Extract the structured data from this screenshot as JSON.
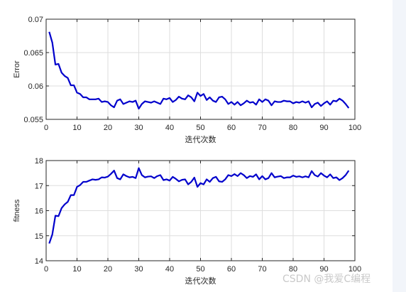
{
  "chart_data": [
    {
      "type": "line",
      "title": "",
      "xlabel": "迭代次数",
      "ylabel": "Error",
      "xlim": [
        0,
        100
      ],
      "ylim": [
        0.055,
        0.07
      ],
      "xticks": [
        "0",
        "10",
        "20",
        "30",
        "40",
        "50",
        "60",
        "70",
        "80",
        "90",
        "100"
      ],
      "yticks": [
        "0.055",
        "0.06",
        "0.065",
        "0.07"
      ],
      "ytick_values": [
        0.055,
        0.06,
        0.065,
        0.07
      ],
      "grid": true,
      "line_color": "#0000cc",
      "x": [
        1,
        2,
        3,
        4,
        5,
        6,
        7,
        8,
        9,
        10,
        11,
        12,
        13,
        14,
        15,
        16,
        17,
        18,
        19,
        20,
        21,
        22,
        23,
        24,
        25,
        26,
        27,
        28,
        29,
        30,
        31,
        32,
        33,
        34,
        35,
        36,
        37,
        38,
        39,
        40,
        41,
        42,
        43,
        44,
        45,
        46,
        47,
        48,
        49,
        50,
        51,
        52,
        53,
        54,
        55,
        56,
        57,
        58,
        59,
        60,
        61,
        62,
        63,
        64,
        65,
        66,
        67,
        68,
        69,
        70,
        71,
        72,
        73,
        74,
        75,
        76,
        77,
        78,
        79,
        80,
        81,
        82,
        83,
        84,
        85,
        86,
        87,
        88,
        89,
        90,
        91,
        92,
        93,
        94,
        95,
        96,
        97,
        98
      ],
      "values": [
        0.0681,
        0.0665,
        0.0632,
        0.0633,
        0.062,
        0.0615,
        0.0612,
        0.0601,
        0.0601,
        0.059,
        0.0588,
        0.0583,
        0.0583,
        0.058,
        0.058,
        0.058,
        0.0581,
        0.0576,
        0.0577,
        0.0576,
        0.0571,
        0.0568,
        0.0578,
        0.058,
        0.0573,
        0.0575,
        0.0577,
        0.0576,
        0.0578,
        0.0566,
        0.0573,
        0.0577,
        0.0576,
        0.0575,
        0.0577,
        0.0575,
        0.0573,
        0.0581,
        0.058,
        0.0582,
        0.0576,
        0.0579,
        0.0584,
        0.0581,
        0.058,
        0.0586,
        0.0583,
        0.0577,
        0.059,
        0.0585,
        0.0588,
        0.0579,
        0.0583,
        0.0578,
        0.0576,
        0.0583,
        0.0584,
        0.058,
        0.0573,
        0.0576,
        0.0572,
        0.0576,
        0.0571,
        0.0574,
        0.0578,
        0.0575,
        0.0576,
        0.0572,
        0.058,
        0.0576,
        0.058,
        0.0578,
        0.0571,
        0.0577,
        0.0576,
        0.0576,
        0.0578,
        0.0577,
        0.0577,
        0.0574,
        0.0576,
        0.0575,
        0.0577,
        0.0575,
        0.0577,
        0.0568,
        0.0573,
        0.0575,
        0.057,
        0.0574,
        0.0577,
        0.0572,
        0.0578,
        0.0577,
        0.0581,
        0.0578,
        0.0573,
        0.0567
      ]
    },
    {
      "type": "line",
      "title": "",
      "xlabel": "迭代次数",
      "ylabel": "fitness",
      "xlim": [
        0,
        100
      ],
      "ylim": [
        14,
        18
      ],
      "xticks": [
        "0",
        "10",
        "20",
        "30",
        "40",
        "50",
        "60",
        "70",
        "80",
        "90",
        "100"
      ],
      "yticks": [
        "14",
        "15",
        "16",
        "17",
        "18"
      ],
      "ytick_values": [
        14,
        15,
        16,
        17,
        18
      ],
      "grid": true,
      "line_color": "#0000cc",
      "x": [
        1,
        2,
        3,
        4,
        5,
        6,
        7,
        8,
        9,
        10,
        11,
        12,
        13,
        14,
        15,
        16,
        17,
        18,
        19,
        20,
        21,
        22,
        23,
        24,
        25,
        26,
        27,
        28,
        29,
        30,
        31,
        32,
        33,
        34,
        35,
        36,
        37,
        38,
        39,
        40,
        41,
        42,
        43,
        44,
        45,
        46,
        47,
        48,
        49,
        50,
        51,
        52,
        53,
        54,
        55,
        56,
        57,
        58,
        59,
        60,
        61,
        62,
        63,
        64,
        65,
        66,
        67,
        68,
        69,
        70,
        71,
        72,
        73,
        74,
        75,
        76,
        77,
        78,
        79,
        80,
        81,
        82,
        83,
        84,
        85,
        86,
        87,
        88,
        89,
        90,
        91,
        92,
        93,
        94,
        95,
        96,
        97,
        98
      ],
      "values": [
        14.69,
        15.05,
        15.8,
        15.78,
        16.1,
        16.25,
        16.35,
        16.62,
        16.62,
        16.95,
        17.02,
        17.15,
        17.15,
        17.2,
        17.25,
        17.23,
        17.25,
        17.33,
        17.32,
        17.36,
        17.47,
        17.6,
        17.3,
        17.25,
        17.45,
        17.38,
        17.33,
        17.35,
        17.3,
        17.7,
        17.42,
        17.33,
        17.36,
        17.37,
        17.3,
        17.38,
        17.42,
        17.22,
        17.25,
        17.2,
        17.35,
        17.27,
        17.17,
        17.23,
        17.25,
        17.05,
        17.15,
        17.32,
        16.95,
        17.1,
        17.05,
        17.25,
        17.15,
        17.3,
        17.35,
        17.17,
        17.15,
        17.25,
        17.42,
        17.38,
        17.46,
        17.38,
        17.5,
        17.42,
        17.3,
        17.38,
        17.35,
        17.45,
        17.25,
        17.38,
        17.25,
        17.3,
        17.5,
        17.33,
        17.36,
        17.38,
        17.3,
        17.33,
        17.33,
        17.4,
        17.35,
        17.37,
        17.33,
        17.37,
        17.33,
        17.58,
        17.42,
        17.36,
        17.5,
        17.4,
        17.33,
        17.45,
        17.3,
        17.33,
        17.22,
        17.3,
        17.42,
        17.6
      ]
    }
  ],
  "watermark": "CSDN @我爱C编程"
}
